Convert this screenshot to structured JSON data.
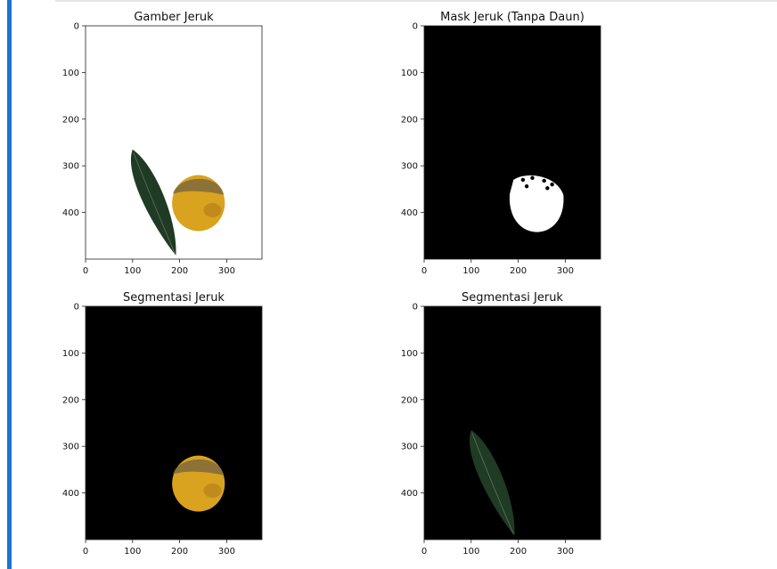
{
  "chart_data": [
    {
      "type": "image",
      "title": "Gamber Jeruk",
      "x_ticks": [
        "0",
        "100",
        "200",
        "300"
      ],
      "y_ticks": [
        "0",
        "100",
        "200",
        "300",
        "400"
      ],
      "xlim": [
        0,
        375
      ],
      "ylim": [
        500,
        0
      ],
      "background": "#ffffff",
      "content": [
        "leaf",
        "orange"
      ]
    },
    {
      "type": "image",
      "title": "Mask Jeruk (Tanpa Daun)",
      "x_ticks": [
        "0",
        "100",
        "200",
        "300"
      ],
      "y_ticks": [
        "0",
        "100",
        "200",
        "300",
        "400"
      ],
      "xlim": [
        0,
        375
      ],
      "ylim": [
        500,
        0
      ],
      "background": "#000000",
      "content": [
        "mask"
      ]
    },
    {
      "type": "image",
      "title": "Segmentasi Jeruk",
      "x_ticks": [
        "0",
        "100",
        "200",
        "300"
      ],
      "y_ticks": [
        "0",
        "100",
        "200",
        "300",
        "400"
      ],
      "xlim": [
        0,
        375
      ],
      "ylim": [
        500,
        0
      ],
      "background": "#000000",
      "content": [
        "orange"
      ]
    },
    {
      "type": "image",
      "title": "Segmentasi Jeruk",
      "x_ticks": [
        "0",
        "100",
        "200",
        "300"
      ],
      "y_ticks": [
        "0",
        "100",
        "200",
        "300",
        "400"
      ],
      "xlim": [
        0,
        375
      ],
      "ylim": [
        500,
        0
      ],
      "background": "#000000",
      "content": [
        "leaf"
      ]
    }
  ],
  "colors": {
    "orange": "#d9a21f",
    "orange_dark": "#a8731a",
    "orange_top": "#7e6a3c",
    "leaf": "#1f3a25",
    "leaf_vein": "#7b8f6a",
    "mask": "#ffffff",
    "cell_bar": "#1976d2"
  }
}
